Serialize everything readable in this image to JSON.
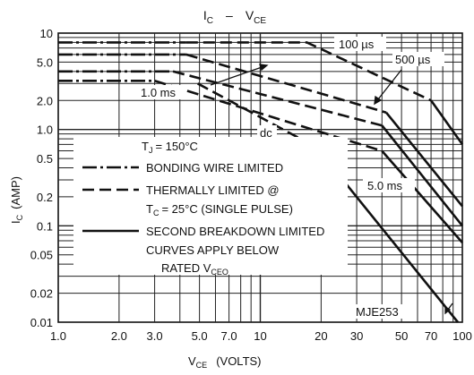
{
  "chart_data": {
    "type": "line",
    "title": "I_C — V_CE",
    "title_parts": {
      "i_main": "I",
      "i_sub": "C",
      "dash": "–",
      "v_main": "V",
      "v_sub": "CE"
    },
    "xlabel_parts": {
      "main": "V",
      "sub": "CE",
      "rest": "(VOLTS)"
    },
    "ylabel_parts": {
      "main": "I",
      "sub": "C",
      "rest": "(AMP)"
    },
    "x_scale": "log",
    "y_scale": "log",
    "xlim": [
      1.0,
      100
    ],
    "ylim": [
      0.01,
      10
    ],
    "grid": true,
    "x_ticks": [
      1.0,
      2.0,
      3.0,
      5.0,
      7.0,
      10,
      20,
      30,
      50,
      70,
      100
    ],
    "x_tick_labels": [
      "1.0",
      "2.0",
      "3.0",
      "5.0",
      "7.0",
      "10",
      "20",
      "30",
      "50",
      "70",
      "100"
    ],
    "y_ticks": [
      10,
      5.0,
      2.0,
      1.0,
      0.5,
      0.2,
      0.1,
      0.05,
      0.02,
      0.01
    ],
    "y_tick_labels": [
      "10",
      "5.0",
      "2.0",
      "1.0",
      "0.5",
      "0.2",
      "0.1",
      "0.05",
      "0.02",
      "0.01"
    ],
    "series": [
      {
        "name": "100 µs",
        "style": "mixed",
        "segments": [
          {
            "type": "bonding",
            "points": [
              [
                1.0,
                8
              ],
              [
                4.3,
                8
              ]
            ]
          },
          {
            "type": "thermal",
            "points": [
              [
                4.3,
                8
              ],
              [
                17,
                8
              ],
              [
                70,
                2
              ]
            ]
          },
          {
            "type": "secondary",
            "points": [
              [
                70,
                2
              ],
              [
                100,
                0.7
              ]
            ]
          }
        ]
      },
      {
        "name": "500 µs",
        "style": "mixed",
        "segments": [
          {
            "type": "bonding",
            "points": [
              [
                1.0,
                6
              ],
              [
                4.3,
                6
              ]
            ]
          },
          {
            "type": "thermal",
            "points": [
              [
                4.3,
                6
              ],
              [
                42,
                1.5
              ]
            ]
          },
          {
            "type": "secondary",
            "points": [
              [
                42,
                1.5
              ],
              [
                100,
                0.16
              ]
            ]
          }
        ]
      },
      {
        "name": "1.0 ms",
        "style": "mixed",
        "segments": [
          {
            "type": "bonding",
            "points": [
              [
                1.0,
                4
              ],
              [
                3.7,
                4
              ]
            ]
          },
          {
            "type": "thermal",
            "points": [
              [
                3.7,
                4
              ],
              [
                40,
                1.1
              ]
            ]
          },
          {
            "type": "secondary",
            "points": [
              [
                40,
                1.1
              ],
              [
                100,
                0.1
              ]
            ]
          }
        ]
      },
      {
        "name": "5.0 ms",
        "style": "mixed",
        "segments": [
          {
            "type": "bonding",
            "points": [
              [
                1.0,
                3.2
              ],
              [
                3.0,
                3.2
              ]
            ]
          },
          {
            "type": "thermal",
            "points": [
              [
                3.0,
                3.2
              ],
              [
                40,
                0.6
              ]
            ]
          },
          {
            "type": "secondary",
            "points": [
              [
                40,
                0.6
              ],
              [
                100,
                0.067
              ]
            ]
          }
        ]
      },
      {
        "name": "dc",
        "style": "mixed",
        "segments": [
          {
            "type": "thermal",
            "points": [
              [
                4.9,
                3.0
              ],
              [
                19,
                0.65
              ]
            ]
          },
          {
            "type": "secondary",
            "points": [
              [
                19,
                0.65
              ],
              [
                95,
                0.01
              ]
            ]
          }
        ]
      }
    ],
    "labels": [
      {
        "text": "100 µs",
        "at": [
          32,
          7.2
        ]
      },
      {
        "text": "500 µs",
        "at": [
          58,
          4.8
        ]
      },
      {
        "text": "1.0 ms",
        "at": [
          1.2,
          1.9
        ]
      },
      {
        "text": "dc",
        "at": [
          10.5,
          0.95
        ]
      },
      {
        "text": "5.0 ms",
        "at": [
          40,
          0.28
        ]
      }
    ],
    "legend": {
      "temperature": "T_J = 150°C",
      "temp_parts": {
        "main": "T",
        "sub": "J",
        "rest": "= 150°C"
      },
      "items": [
        {
          "style": "dash-dot",
          "text": "BONDING WIRE LIMITED"
        },
        {
          "style": "dashed",
          "text": "THERMALLY LIMITED @"
        },
        {
          "style": "none",
          "text": "T_C = 25°C (SINGLE PULSE)"
        },
        {
          "style": "solid",
          "text": "SECOND BREAKDOWN LIMITED"
        },
        {
          "style": "none",
          "text": "CURVES APPLY BELOW"
        },
        {
          "style": "none",
          "text": "RATED V_CEO"
        }
      ],
      "item3_parts": {
        "main": "T",
        "sub": "C",
        "rest": "= 25°C (SINGLE PULSE)"
      },
      "item6_parts": {
        "main": "RATED V",
        "sub": "CEO"
      }
    },
    "part_number": "MJE253"
  }
}
